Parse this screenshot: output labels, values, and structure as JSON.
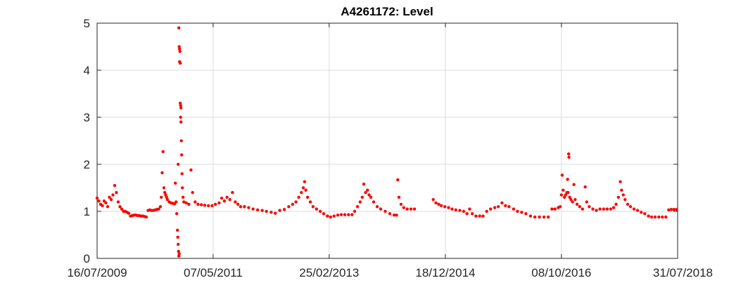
{
  "chart_data": {
    "type": "scatter",
    "title": "A4261172: Level",
    "xlabel": "",
    "ylabel": "",
    "x_tick_labels": [
      "16/07/2009",
      "07/05/2011",
      "25/02/2013",
      "18/12/2014",
      "08/10/2016",
      "31/07/2018"
    ],
    "x_range": [
      "16/07/2009",
      "31/07/2018"
    ],
    "y_ticks": [
      0,
      1,
      2,
      3,
      4,
      5
    ],
    "ylim": [
      0,
      5
    ],
    "grid": true,
    "marker_color": "#ff0000",
    "series": [
      {
        "points": [
          [
            "2009-07-16",
            1.28
          ],
          [
            "2009-07-26",
            1.22
          ],
          [
            "2009-08-05",
            1.15
          ],
          [
            "2009-08-15",
            1.12
          ],
          [
            "2009-08-25",
            1.22
          ],
          [
            "2009-09-04",
            1.18
          ],
          [
            "2009-09-14",
            1.1
          ],
          [
            "2009-09-24",
            1.3
          ],
          [
            "2009-10-04",
            1.25
          ],
          [
            "2009-10-14",
            1.35
          ],
          [
            "2009-10-24",
            1.55
          ],
          [
            "2009-11-03",
            1.4
          ],
          [
            "2009-11-13",
            1.2
          ],
          [
            "2009-11-23",
            1.1
          ],
          [
            "2009-12-03",
            1.05
          ],
          [
            "2009-12-13",
            1.0
          ],
          [
            "2009-12-23",
            1.0
          ],
          [
            "2010-01-02",
            0.98
          ],
          [
            "2010-01-12",
            0.96
          ],
          [
            "2010-01-22",
            0.9
          ],
          [
            "2010-02-01",
            0.91
          ],
          [
            "2010-02-11",
            0.92
          ],
          [
            "2010-02-21",
            0.92
          ],
          [
            "2010-03-03",
            0.91
          ],
          [
            "2010-03-13",
            0.91
          ],
          [
            "2010-03-23",
            0.9
          ],
          [
            "2010-04-02",
            0.9
          ],
          [
            "2010-04-12",
            0.89
          ],
          [
            "2010-04-22",
            0.88
          ],
          [
            "2010-05-02",
            1.02
          ],
          [
            "2010-05-12",
            1.03
          ],
          [
            "2010-05-22",
            1.02
          ],
          [
            "2010-06-01",
            1.02
          ],
          [
            "2010-06-11",
            1.03
          ],
          [
            "2010-06-21",
            1.04
          ],
          [
            "2010-07-01",
            1.05
          ],
          [
            "2010-07-11",
            1.1
          ],
          [
            "2010-07-16",
            1.3
          ],
          [
            "2010-07-21",
            1.82
          ],
          [
            "2010-07-26",
            2.27
          ],
          [
            "2010-07-31",
            1.5
          ],
          [
            "2010-08-05",
            1.4
          ],
          [
            "2010-08-10",
            1.35
          ],
          [
            "2010-08-15",
            1.3
          ],
          [
            "2010-08-20",
            1.25
          ],
          [
            "2010-08-30",
            1.2
          ],
          [
            "2010-09-09",
            1.18
          ],
          [
            "2010-09-19",
            1.17
          ],
          [
            "2010-09-29",
            1.16
          ],
          [
            "2010-10-04",
            1.6
          ],
          [
            "2010-10-08",
            1.2
          ],
          [
            "2010-10-12",
            0.95
          ],
          [
            "2010-10-16",
            0.6
          ],
          [
            "2010-10-18",
            0.45
          ],
          [
            "2010-10-20",
            0.3
          ],
          [
            "2010-10-22",
            0.15
          ],
          [
            "2010-10-24",
            0.05
          ],
          [
            "2010-10-26",
            0.1
          ],
          [
            "2010-10-20",
            2.0
          ],
          [
            "2010-10-24",
            4.9
          ],
          [
            "2010-10-26",
            4.5
          ],
          [
            "2010-10-28",
            4.45
          ],
          [
            "2010-10-30",
            4.4
          ],
          [
            "2010-10-28",
            4.18
          ],
          [
            "2010-11-01",
            4.15
          ],
          [
            "2010-11-01",
            3.3
          ],
          [
            "2010-11-03",
            3.25
          ],
          [
            "2010-11-05",
            3.2
          ],
          [
            "2010-11-03",
            3.0
          ],
          [
            "2010-11-05",
            2.9
          ],
          [
            "2010-11-07",
            2.5
          ],
          [
            "2010-11-09",
            2.2
          ],
          [
            "2010-11-11",
            1.8
          ],
          [
            "2010-11-13",
            1.5
          ],
          [
            "2010-11-17",
            1.3
          ],
          [
            "2010-11-21",
            1.2
          ],
          [
            "2010-12-05",
            1.18
          ],
          [
            "2010-12-20",
            1.15
          ],
          [
            "2011-01-01",
            1.88
          ],
          [
            "2011-01-10",
            1.4
          ],
          [
            "2011-01-25",
            1.2
          ],
          [
            "2011-02-10",
            1.15
          ],
          [
            "2011-03-01",
            1.14
          ],
          [
            "2011-03-20",
            1.13
          ],
          [
            "2011-04-10",
            1.12
          ],
          [
            "2011-05-01",
            1.12
          ],
          [
            "2011-05-20",
            1.15
          ],
          [
            "2011-06-10",
            1.18
          ],
          [
            "2011-06-25",
            1.28
          ],
          [
            "2011-07-10",
            1.22
          ],
          [
            "2011-07-25",
            1.3
          ],
          [
            "2011-08-10",
            1.25
          ],
          [
            "2011-08-25",
            1.4
          ],
          [
            "2011-09-10",
            1.2
          ],
          [
            "2011-09-25",
            1.15
          ],
          [
            "2011-10-10",
            1.1
          ],
          [
            "2011-11-01",
            1.1
          ],
          [
            "2011-11-25",
            1.08
          ],
          [
            "2011-12-20",
            1.05
          ],
          [
            "2012-01-15",
            1.03
          ],
          [
            "2012-02-10",
            1.02
          ],
          [
            "2012-03-05",
            1.0
          ],
          [
            "2012-04-01",
            0.98
          ],
          [
            "2012-04-25",
            0.96
          ],
          [
            "2012-05-20",
            1.02
          ],
          [
            "2012-06-15",
            1.04
          ],
          [
            "2012-07-10",
            1.1
          ],
          [
            "2012-08-01",
            1.15
          ],
          [
            "2012-08-20",
            1.2
          ],
          [
            "2012-09-05",
            1.3
          ],
          [
            "2012-09-20",
            1.4
          ],
          [
            "2012-10-01",
            1.5
          ],
          [
            "2012-10-08",
            1.63
          ],
          [
            "2012-10-15",
            1.45
          ],
          [
            "2012-10-25",
            1.3
          ],
          [
            "2012-11-10",
            1.2
          ],
          [
            "2012-11-25",
            1.1
          ],
          [
            "2012-12-15",
            1.05
          ],
          [
            "2013-01-05",
            1.0
          ],
          [
            "2013-01-25",
            0.95
          ],
          [
            "2013-02-15",
            0.9
          ],
          [
            "2013-03-05",
            0.88
          ],
          [
            "2013-03-25",
            0.9
          ],
          [
            "2013-04-15",
            0.92
          ],
          [
            "2013-05-05",
            0.93
          ],
          [
            "2013-05-25",
            0.93
          ],
          [
            "2013-06-15",
            0.93
          ],
          [
            "2013-07-05",
            0.93
          ],
          [
            "2013-07-20",
            1.0
          ],
          [
            "2013-08-05",
            1.1
          ],
          [
            "2013-08-20",
            1.2
          ],
          [
            "2013-09-01",
            1.3
          ],
          [
            "2013-09-10",
            1.58
          ],
          [
            "2013-09-20",
            1.4
          ],
          [
            "2013-10-01",
            1.45
          ],
          [
            "2013-10-10",
            1.35
          ],
          [
            "2013-10-20",
            1.3
          ],
          [
            "2013-11-05",
            1.2
          ],
          [
            "2013-11-25",
            1.1
          ],
          [
            "2013-12-15",
            1.05
          ],
          [
            "2014-01-10",
            1.0
          ],
          [
            "2014-02-05",
            0.95
          ],
          [
            "2014-03-01",
            0.92
          ],
          [
            "2014-03-15",
            0.92
          ],
          [
            "2014-03-22",
            1.67
          ],
          [
            "2014-03-29",
            1.3
          ],
          [
            "2014-04-10",
            1.15
          ],
          [
            "2014-04-25",
            1.08
          ],
          [
            "2014-05-15",
            1.05
          ],
          [
            "2014-06-05",
            1.05
          ],
          [
            "2014-06-25",
            1.05
          ],
          [
            "2014-10-10",
            1.25
          ],
          [
            "2014-10-25",
            1.18
          ],
          [
            "2014-11-10",
            1.15
          ],
          [
            "2014-11-25",
            1.12
          ],
          [
            "2014-12-15",
            1.1
          ],
          [
            "2015-01-05",
            1.08
          ],
          [
            "2015-01-25",
            1.05
          ],
          [
            "2015-02-15",
            1.03
          ],
          [
            "2015-03-10",
            1.02
          ],
          [
            "2015-04-01",
            1.0
          ],
          [
            "2015-04-20",
            0.95
          ],
          [
            "2015-05-05",
            1.05
          ],
          [
            "2015-05-20",
            0.95
          ],
          [
            "2015-06-10",
            0.9
          ],
          [
            "2015-07-01",
            0.9
          ],
          [
            "2015-07-20",
            0.9
          ],
          [
            "2015-08-10",
            1.0
          ],
          [
            "2015-09-01",
            1.05
          ],
          [
            "2015-09-25",
            1.08
          ],
          [
            "2015-10-15",
            1.1
          ],
          [
            "2015-11-05",
            1.18
          ],
          [
            "2015-11-25",
            1.12
          ],
          [
            "2015-12-15",
            1.1
          ],
          [
            "2016-01-10",
            1.05
          ],
          [
            "2016-02-01",
            1.0
          ],
          [
            "2016-02-25",
            0.98
          ],
          [
            "2016-03-20",
            0.95
          ],
          [
            "2016-04-15",
            0.9
          ],
          [
            "2016-05-10",
            0.88
          ],
          [
            "2016-06-05",
            0.88
          ],
          [
            "2016-07-01",
            0.88
          ],
          [
            "2016-07-25",
            0.88
          ],
          [
            "2016-08-15",
            1.05
          ],
          [
            "2016-09-01",
            1.05
          ],
          [
            "2016-09-20",
            1.08
          ],
          [
            "2016-10-01",
            1.1
          ],
          [
            "2016-10-08",
            1.35
          ],
          [
            "2016-10-12",
            1.77
          ],
          [
            "2016-10-18",
            1.45
          ],
          [
            "2016-10-25",
            1.3
          ],
          [
            "2016-11-01",
            1.35
          ],
          [
            "2016-11-08",
            1.4
          ],
          [
            "2016-11-12",
            1.68
          ],
          [
            "2016-11-15",
            1.4
          ],
          [
            "2016-11-18",
            2.22
          ],
          [
            "2016-11-20",
            2.15
          ],
          [
            "2016-11-24",
            1.3
          ],
          [
            "2016-12-01",
            1.25
          ],
          [
            "2016-12-10",
            1.2
          ],
          [
            "2016-12-18",
            1.57
          ],
          [
            "2016-12-25",
            1.25
          ],
          [
            "2017-01-05",
            1.15
          ],
          [
            "2017-01-20",
            1.1
          ],
          [
            "2017-02-05",
            1.05
          ],
          [
            "2017-02-20",
            1.52
          ],
          [
            "2017-03-01",
            1.2
          ],
          [
            "2017-03-15",
            1.1
          ],
          [
            "2017-04-05",
            1.05
          ],
          [
            "2017-04-25",
            1.02
          ],
          [
            "2017-05-15",
            1.05
          ],
          [
            "2017-06-05",
            1.05
          ],
          [
            "2017-06-25",
            1.05
          ],
          [
            "2017-07-15",
            1.05
          ],
          [
            "2017-08-01",
            1.08
          ],
          [
            "2017-08-15",
            1.15
          ],
          [
            "2017-08-28",
            1.3
          ],
          [
            "2017-09-08",
            1.63
          ],
          [
            "2017-09-15",
            1.45
          ],
          [
            "2017-09-25",
            1.35
          ],
          [
            "2017-10-05",
            1.25
          ],
          [
            "2017-10-20",
            1.15
          ],
          [
            "2017-11-05",
            1.1
          ],
          [
            "2017-11-25",
            1.05
          ],
          [
            "2017-12-15",
            1.02
          ],
          [
            "2018-01-05",
            0.98
          ],
          [
            "2018-01-25",
            0.95
          ],
          [
            "2018-02-15",
            0.9
          ],
          [
            "2018-03-05",
            0.88
          ],
          [
            "2018-03-25",
            0.88
          ],
          [
            "2018-04-15",
            0.88
          ],
          [
            "2018-05-05",
            0.88
          ],
          [
            "2018-05-25",
            0.88
          ],
          [
            "2018-06-10",
            1.03
          ],
          [
            "2018-06-25",
            1.04
          ],
          [
            "2018-07-10",
            1.04
          ],
          [
            "2018-07-25",
            1.04
          ]
        ]
      }
    ]
  }
}
